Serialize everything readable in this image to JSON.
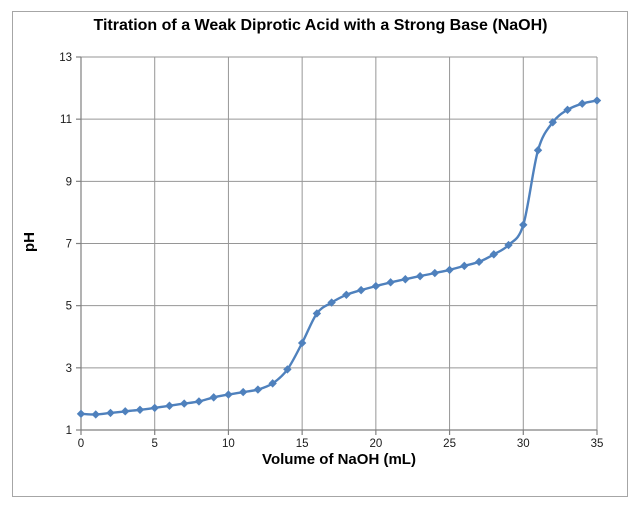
{
  "frame": {
    "background": "#ffffff",
    "border_color": "#a6a6a6"
  },
  "chart_data": {
    "type": "line",
    "title": "Titration of a Weak Diprotic Acid with a Strong Base (NaOH)",
    "xlabel": "Volume of NaOH (mL)",
    "ylabel": "pH",
    "x": [
      0,
      1,
      2,
      3,
      4,
      5,
      6,
      7,
      8,
      9,
      10,
      11,
      12,
      13,
      14,
      15,
      16,
      17,
      18,
      19,
      20,
      21,
      22,
      23,
      24,
      25,
      26,
      27,
      28,
      29,
      30,
      31,
      32,
      33,
      34,
      35
    ],
    "y": [
      1.52,
      1.5,
      1.55,
      1.6,
      1.65,
      1.71,
      1.78,
      1.85,
      1.92,
      2.05,
      2.14,
      2.22,
      2.3,
      2.5,
      2.95,
      3.8,
      4.75,
      5.1,
      5.35,
      5.5,
      5.63,
      5.75,
      5.85,
      5.95,
      6.05,
      6.15,
      6.28,
      6.41,
      6.65,
      6.95,
      7.6,
      10.0,
      10.9,
      11.3,
      11.5,
      11.6
    ],
    "xlim": [
      0,
      35
    ],
    "ylim": [
      1,
      13
    ],
    "x_ticks": [
      0,
      5,
      10,
      15,
      20,
      25,
      30,
      35
    ],
    "y_ticks": [
      1,
      3,
      5,
      7,
      9,
      11,
      13
    ],
    "grid": true,
    "legend": "none",
    "smooth": true,
    "marker": "diamond",
    "line_color": "#4f81bd",
    "marker_color": "#4f81bd",
    "gridline_color": "#969696",
    "axis_color": "#808080",
    "tick_text_color": "#1a1a1a"
  }
}
